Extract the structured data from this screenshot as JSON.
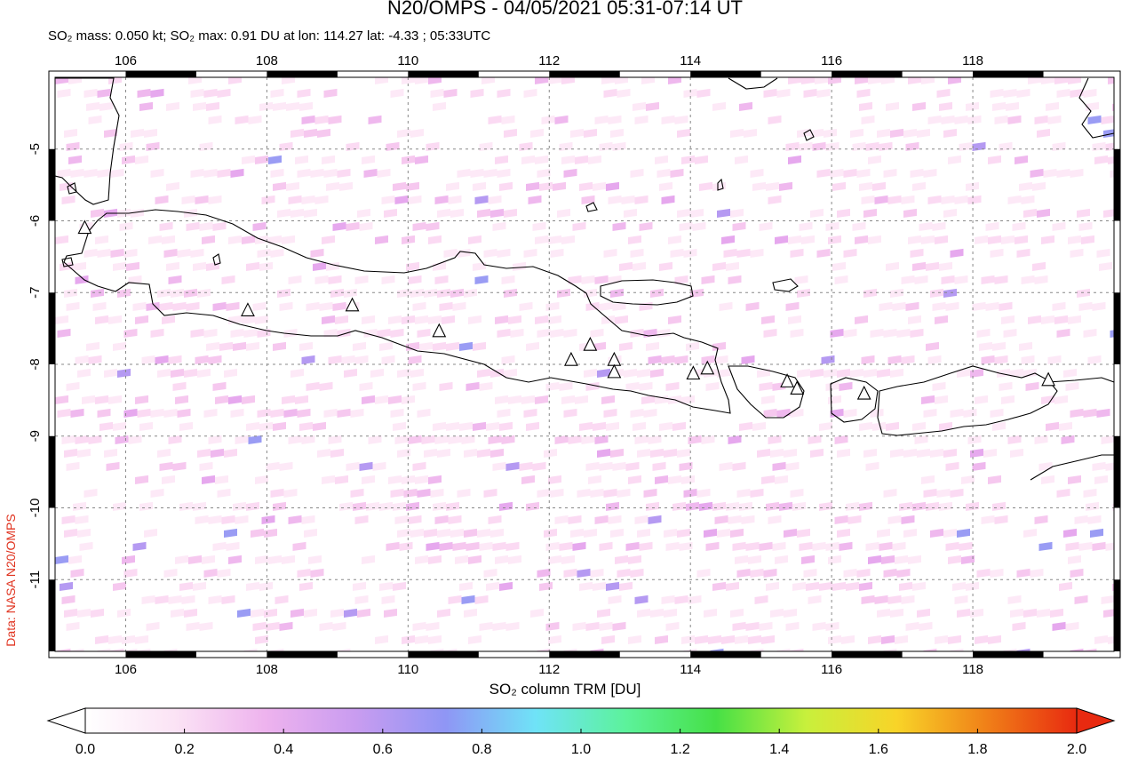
{
  "title": "N20/OMPS - 04/05/2021 05:31-07:14 UT",
  "subtitle": "SO₂ mass: 0.050 kt; SO₂ max: 0.91 DU at lon: 114.27 lat: -4.33 ; 05:33UTC",
  "credit": "Data: NASA N20/OMPS",
  "map": {
    "lon_range": [
      105,
      120
    ],
    "lat_range": [
      -12,
      -4
    ],
    "lon_ticks": [
      106,
      108,
      110,
      112,
      114,
      116,
      118
    ],
    "lat_ticks": [
      -5,
      -6,
      -7,
      -8,
      -9,
      -10,
      -11
    ],
    "lon_tick_labels": [
      "106",
      "108",
      "110",
      "112",
      "114",
      "116",
      "118"
    ],
    "lat_tick_labels": [
      "-5",
      "-6",
      "-7",
      "-8",
      "-9",
      "-10",
      "-11"
    ],
    "volcanoes": [
      [
        105.42,
        -6.1
      ],
      [
        107.73,
        -7.25
      ],
      [
        109.21,
        -7.18
      ],
      [
        110.44,
        -7.54
      ],
      [
        112.31,
        -7.94
      ],
      [
        112.58,
        -7.73
      ],
      [
        112.92,
        -7.94
      ],
      [
        112.92,
        -8.11
      ],
      [
        114.04,
        -8.13
      ],
      [
        114.24,
        -8.06
      ],
      [
        115.37,
        -8.24
      ],
      [
        115.51,
        -8.34
      ],
      [
        116.46,
        -8.41
      ],
      [
        119.07,
        -8.22
      ]
    ]
  },
  "colorbar": {
    "title": "SO₂ column TRM [DU]",
    "min": 0.0,
    "max": 2.0,
    "tick_labels": [
      "0.0",
      "0.2",
      "0.4",
      "0.6",
      "0.8",
      "1.0",
      "1.2",
      "1.4",
      "1.6",
      "1.8",
      "2.0"
    ],
    "colors": [
      "#ffffff",
      "#fbe3f5",
      "#eeb3ee",
      "#c99cf0",
      "#8f96f5",
      "#6fe3f7",
      "#5cf29b",
      "#46e046",
      "#c8f03c",
      "#f8d428",
      "#f08018",
      "#e82a10"
    ]
  }
}
